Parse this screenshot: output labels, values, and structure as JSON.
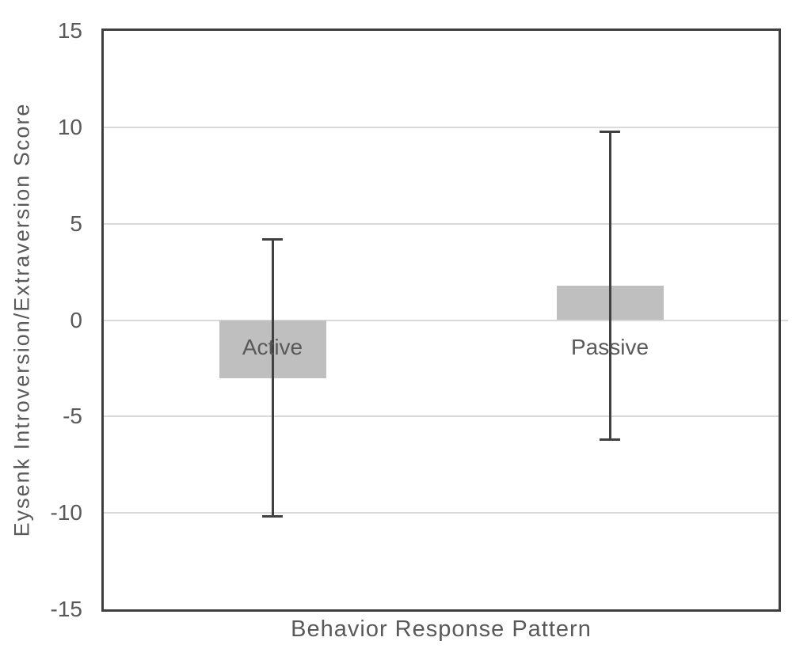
{
  "chart_data": {
    "type": "bar",
    "title": "",
    "xlabel": "Behavior Response Pattern",
    "ylabel": "Eysenk Introversion/Extraversion Score",
    "categories": [
      "Active",
      "Passive"
    ],
    "series": [
      {
        "name": "Eysenk Introversion/Extraversion Score",
        "values": [
          -3,
          1.8
        ],
        "error_bar_top": [
          4.2,
          9.8
        ],
        "error_bar_bottom": [
          -10.2,
          -6.2
        ]
      }
    ],
    "ylim": [
      -15,
      15
    ],
    "yticks": [
      15,
      10,
      5,
      0,
      "-5",
      "-10",
      "-15"
    ],
    "ytick_values": [
      15,
      10,
      5,
      0,
      -5,
      -10,
      -15
    ],
    "grid": "horizontal",
    "legend_position": "none",
    "colors": {
      "bar_fill": "#bfbfbf",
      "error_bar": "#404040",
      "gridline": "#d9d9d9",
      "plot_border": "#3f3f3f",
      "text": "#595959",
      "background": "#ffffff"
    }
  }
}
